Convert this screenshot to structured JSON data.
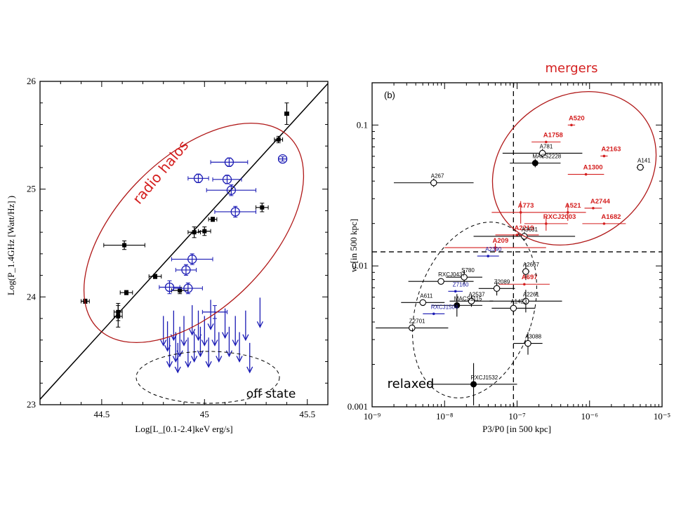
{
  "chart_data": [
    {
      "type": "scatter",
      "panel": "left",
      "ylabel": "Log(P_1.4GHz [Watt/Hz] )",
      "xlabel": "Log[L_[0.1-2.4]keV erg/s]",
      "xlim": [
        44.2,
        45.6
      ],
      "ylim": [
        23.0,
        26.0
      ],
      "xticks": [
        "44.5",
        "45",
        "45.5"
      ],
      "yticks": [
        "23",
        "24",
        "25",
        "26"
      ],
      "fit_line": {
        "x": [
          44.2,
          45.6
        ],
        "y": [
          23.05,
          25.98
        ]
      },
      "series": [
        {
          "name": "black",
          "color": "#000000",
          "points": [
            {
              "x": 44.42,
              "y": 23.96,
              "xerr": 0.02,
              "yerr": 0.02
            },
            {
              "x": 44.58,
              "y": 23.86,
              "xerr": 0.02,
              "yerr": 0.08
            },
            {
              "x": 44.58,
              "y": 23.82,
              "xerr": 0.02,
              "yerr": 0.1
            },
            {
              "x": 44.62,
              "y": 24.04,
              "xerr": 0.03,
              "yerr": 0.02
            },
            {
              "x": 44.61,
              "y": 24.48,
              "xerr": 0.1,
              "yerr": 0.04
            },
            {
              "x": 44.76,
              "y": 24.19,
              "xerr": 0.03,
              "yerr": 0.02
            },
            {
              "x": 44.88,
              "y": 24.06,
              "xerr": 0.04,
              "yerr": 0.03
            },
            {
              "x": 44.95,
              "y": 24.6,
              "xerr": 0.03,
              "yerr": 0.05
            },
            {
              "x": 45.0,
              "y": 24.61,
              "xerr": 0.03,
              "yerr": 0.04
            },
            {
              "x": 45.04,
              "y": 24.72,
              "xerr": 0.02,
              "yerr": 0.02
            },
            {
              "x": 45.28,
              "y": 24.83,
              "xerr": 0.03,
              "yerr": 0.04
            },
            {
              "x": 45.36,
              "y": 25.46,
              "xerr": 0.02,
              "yerr": 0.03
            },
            {
              "x": 45.4,
              "y": 25.7,
              "xerr": 0.01,
              "yerr": 0.1
            }
          ]
        },
        {
          "name": "blue",
          "color": "#1a1ab4",
          "points": [
            {
              "x": 44.83,
              "y": 24.09,
              "xerr": 0.05,
              "yerr": 0.06
            },
            {
              "x": 44.92,
              "y": 24.08,
              "xerr": 0.07,
              "yerr": 0.05
            },
            {
              "x": 44.91,
              "y": 24.25,
              "xerr": 0.05,
              "yerr": 0.05
            },
            {
              "x": 44.94,
              "y": 24.35,
              "xerr": 0.1,
              "yerr": 0.05
            },
            {
              "x": 44.97,
              "y": 25.1,
              "xerr": 0.05,
              "yerr": 0.04
            },
            {
              "x": 45.12,
              "y": 25.25,
              "xerr": 0.09,
              "yerr": 0.04
            },
            {
              "x": 45.11,
              "y": 25.09,
              "xerr": 0.07,
              "yerr": 0.04
            },
            {
              "x": 45.13,
              "y": 24.99,
              "xerr": 0.12,
              "yerr": 0.05
            },
            {
              "x": 45.15,
              "y": 24.79,
              "xerr": 0.1,
              "yerr": 0.05
            },
            {
              "x": 45.38,
              "y": 25.28,
              "xerr": 0.02,
              "yerr": 0.02
            }
          ]
        }
      ],
      "upper_limit_point": {
        "x": 45.05,
        "y": 23.86,
        "xerr": 0.06,
        "yerr": 0.06
      },
      "upper_limits": [
        {
          "x": 44.8,
          "y": 23.55
        },
        {
          "x": 44.82,
          "y": 23.5
        },
        {
          "x": 44.83,
          "y": 23.35
        },
        {
          "x": 44.85,
          "y": 23.6
        },
        {
          "x": 44.86,
          "y": 23.4
        },
        {
          "x": 44.87,
          "y": 23.3
        },
        {
          "x": 44.88,
          "y": 23.45
        },
        {
          "x": 44.9,
          "y": 23.55
        },
        {
          "x": 44.92,
          "y": 23.35
        },
        {
          "x": 44.94,
          "y": 23.65
        },
        {
          "x": 44.95,
          "y": 23.4
        },
        {
          "x": 44.97,
          "y": 23.6
        },
        {
          "x": 44.98,
          "y": 23.45
        },
        {
          "x": 45.0,
          "y": 23.55
        },
        {
          "x": 45.02,
          "y": 23.35
        },
        {
          "x": 45.03,
          "y": 23.7
        },
        {
          "x": 45.05,
          "y": 23.55
        },
        {
          "x": 45.07,
          "y": 23.4
        },
        {
          "x": 45.1,
          "y": 23.62
        },
        {
          "x": 45.12,
          "y": 23.45
        },
        {
          "x": 45.15,
          "y": 23.55
        },
        {
          "x": 45.17,
          "y": 23.4
        },
        {
          "x": 45.2,
          "y": 23.6
        },
        {
          "x": 45.22,
          "y": 23.3
        },
        {
          "x": 45.27,
          "y": 23.72
        }
      ]
    },
    {
      "type": "scatter",
      "panel": "right",
      "panel_label": "(b)",
      "xlabel": "P3/P0 [in 500 kpc]",
      "ylabel": "w [in 500 kpc]",
      "xscale": "log",
      "yscale": "log",
      "xlim_log": [
        -9,
        -5
      ],
      "ylim_log": [
        -3,
        -0.7
      ],
      "xticks": [
        "10⁻⁹",
        "10⁻⁸",
        "10⁻⁷",
        "10⁻⁶",
        "10⁻⁵"
      ],
      "yticks": [
        "0.001",
        "0.01",
        "0.1"
      ],
      "thresholds": {
        "x_log": -7.05,
        "y_log": -1.9
      },
      "points": [
        {
          "label": "A520",
          "lx": -6.25,
          "ly": -1.0,
          "xe": 0.05,
          "ye": 0.0,
          "kind": "dot",
          "color": "red"
        },
        {
          "label": "A1758",
          "lx": -6.6,
          "ly": -1.12,
          "xe": 0.2,
          "ye": 0.0,
          "kind": "dot",
          "color": "red"
        },
        {
          "label": "A2163",
          "lx": -5.8,
          "ly": -1.22,
          "xe": 0.05,
          "ye": 0.0,
          "kind": "dot",
          "color": "red"
        },
        {
          "label": "A141",
          "lx": -5.3,
          "ly": -1.3,
          "xe": 0.05,
          "ye": 0.0,
          "kind": "open",
          "color": "black"
        },
        {
          "label": "A781",
          "lx": -6.65,
          "ly": -1.2,
          "xe": 0.55,
          "ye": 0.03,
          "kind": "open",
          "color": "black"
        },
        {
          "label": "MACS2228",
          "lx": -6.75,
          "ly": -1.27,
          "xe": 0.35,
          "ye": 0.03,
          "kind": "filled",
          "color": "black"
        },
        {
          "label": "A1300",
          "lx": -6.05,
          "ly": -1.35,
          "xe": 0.25,
          "ye": 0.0,
          "kind": "dot",
          "color": "red"
        },
        {
          "label": "A267",
          "lx": -8.15,
          "ly": -1.41,
          "xe": 0.55,
          "ye": 0.03,
          "kind": "open",
          "color": "black"
        },
        {
          "label": "A2744",
          "lx": -5.95,
          "ly": -1.59,
          "xe": 0.12,
          "ye": 0.0,
          "kind": "dot",
          "color": "red"
        },
        {
          "label": "A773",
          "lx": -6.95,
          "ly": -1.62,
          "xe": 0.4,
          "ye": 0.08,
          "kind": "dot",
          "color": "red"
        },
        {
          "label": "A521",
          "lx": -6.3,
          "ly": -1.62,
          "xe": 0.25,
          "ye": 0.06,
          "kind": "dot",
          "color": "red"
        },
        {
          "label": "RXCJ2003",
          "lx": -6.6,
          "ly": -1.7,
          "xe": 0.3,
          "ye": 0.05,
          "kind": "dot",
          "color": "red"
        },
        {
          "label": "A1682",
          "lx": -5.8,
          "ly": -1.7,
          "xe": 0.3,
          "ye": 0.0,
          "kind": "dot",
          "color": "red"
        },
        {
          "label": "A2219",
          "lx": -7.0,
          "ly": -1.78,
          "xe": 0.3,
          "ye": 0.0,
          "kind": "dot",
          "color": "red"
        },
        {
          "label": "A3631",
          "lx": -6.9,
          "ly": -1.79,
          "xe": 0.7,
          "ye": 0.03,
          "kind": "open",
          "color": "black"
        },
        {
          "label": "A209",
          "lx": -7.3,
          "ly": -1.87,
          "xe": 0.7,
          "ye": 0.03,
          "kind": "dot",
          "color": "red"
        },
        {
          "label": "A2390",
          "lx": -7.4,
          "ly": -1.93,
          "xe": 0.15,
          "ye": 0.0,
          "kind": "dot",
          "color": "blue"
        },
        {
          "label": "A2667",
          "lx": -6.88,
          "ly": -2.04,
          "xe": 0.05,
          "ye": 0.06,
          "kind": "open",
          "color": "black"
        },
        {
          "label": "S780",
          "lx": -7.73,
          "ly": -2.08,
          "xe": 0.25,
          "ye": 0.05,
          "kind": "open",
          "color": "black"
        },
        {
          "label": "RXCJ0437",
          "lx": -8.05,
          "ly": -2.11,
          "xe": 0.45,
          "ye": 0.0,
          "kind": "open",
          "color": "black"
        },
        {
          "label": "A697",
          "lx": -6.9,
          "ly": -2.13,
          "xe": 0.35,
          "ye": 0.0,
          "kind": "dot",
          "color": "red"
        },
        {
          "label": "Z2089",
          "lx": -7.28,
          "ly": -2.16,
          "xe": 0.25,
          "ye": 0.05,
          "kind": "open",
          "color": "black"
        },
        {
          "label": "Z7160",
          "lx": -7.85,
          "ly": -2.18,
          "xe": 0.1,
          "ye": 0.0,
          "kind": "dot",
          "color": "blue"
        },
        {
          "label": "A2537",
          "lx": -7.63,
          "ly": -2.25,
          "xe": 0.3,
          "ye": 0.04,
          "kind": "open",
          "color": "black"
        },
        {
          "label": "A611",
          "lx": -8.3,
          "ly": -2.26,
          "xe": 0.3,
          "ye": 0.0,
          "kind": "open",
          "color": "black"
        },
        {
          "label": "A2261",
          "lx": -6.88,
          "ly": -2.25,
          "xe": 0.5,
          "ye": 0.08,
          "kind": "open",
          "color": "black"
        },
        {
          "label": "A1423",
          "lx": -7.05,
          "ly": -2.3,
          "xe": 0.3,
          "ye": 0.05,
          "kind": "open",
          "color": "black"
        },
        {
          "label": "MACS1115",
          "lx": -7.83,
          "ly": -2.28,
          "xe": 0.35,
          "ye": 0.08,
          "kind": "filled",
          "color": "black"
        },
        {
          "label": "RXCJ1504",
          "lx": -8.15,
          "ly": -2.34,
          "xe": 0.15,
          "ye": 0.0,
          "kind": "dot",
          "color": "blue"
        },
        {
          "label": "Z2701",
          "lx": -8.45,
          "ly": -2.44,
          "xe": 0.5,
          "ye": 0.0,
          "kind": "open",
          "color": "black"
        },
        {
          "label": "A3088",
          "lx": -6.85,
          "ly": -2.55,
          "xe": 0.2,
          "ye": 0.08,
          "kind": "open",
          "color": "black"
        },
        {
          "label": "RXCJ1532",
          "lx": -7.6,
          "ly": -2.84,
          "xe": 0.6,
          "ye": 0.15,
          "kind": "filled",
          "color": "black"
        }
      ]
    }
  ],
  "annotations": {
    "radio_halos": "radio halos",
    "off_state": "off state",
    "mergers": "mergers",
    "relaxed": "relaxed"
  },
  "colors": {
    "red": "#d41f1f",
    "blue": "#1a1ab4",
    "black": "#000000"
  }
}
